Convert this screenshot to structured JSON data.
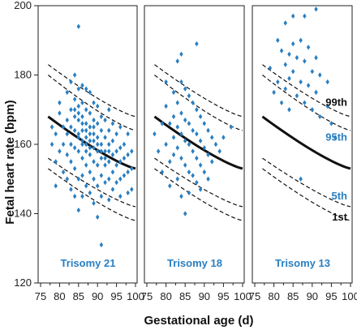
{
  "chart_data": {
    "type": "scatter",
    "ylabel": "Fetal heart rate (bpm)",
    "xlabel": "Gestational age (d)",
    "ylim": [
      120,
      200
    ],
    "yticks": [
      120,
      140,
      160,
      180,
      200
    ],
    "xlim": [
      75,
      100
    ],
    "xticks": [
      75,
      80,
      85,
      90,
      95,
      100
    ],
    "grid": false,
    "marker_color": "#2a7fc1",
    "percentile_labels": [
      {
        "text": "99th",
        "color": "#111111",
        "y": 172
      },
      {
        "text": "95th",
        "color": "#2a7fc1",
        "y": 162
      },
      {
        "text": "5th",
        "color": "#2a7fc1",
        "y": 145
      },
      {
        "text": "1st",
        "color": "#111111",
        "y": 139
      }
    ],
    "reference_curves": [
      {
        "type": "median",
        "style": "solid",
        "x": [
          77,
          100
        ],
        "y": [
          168,
          153
        ]
      },
      {
        "type": "95th",
        "style": "dashed",
        "x": [
          77,
          100
        ],
        "y": [
          180,
          164
        ]
      },
      {
        "type": "99th",
        "style": "dashed",
        "x": [
          77,
          100
        ],
        "y": [
          183,
          168
        ]
      },
      {
        "type": "5th",
        "style": "dashed",
        "x": [
          77,
          100
        ],
        "y": [
          156,
          142
        ]
      },
      {
        "type": "1st",
        "style": "dashed",
        "x": [
          77,
          100
        ],
        "y": [
          153,
          138
        ]
      }
    ],
    "panels": [
      {
        "name": "Trisomy 21",
        "points": [
          [
            78,
            165
          ],
          [
            78,
            160
          ],
          [
            79,
            163
          ],
          [
            79,
            148
          ],
          [
            79,
            155
          ],
          [
            80,
            169
          ],
          [
            80,
            172
          ],
          [
            80,
            158
          ],
          [
            81,
            165
          ],
          [
            81,
            160
          ],
          [
            81,
            152
          ],
          [
            82,
            175
          ],
          [
            82,
            167
          ],
          [
            82,
            163
          ],
          [
            82,
            157
          ],
          [
            82,
            150
          ],
          [
            83,
            178
          ],
          [
            83,
            170
          ],
          [
            83,
            165
          ],
          [
            83,
            160
          ],
          [
            83,
            155
          ],
          [
            83,
            147
          ],
          [
            84,
            180
          ],
          [
            84,
            173
          ],
          [
            84,
            168
          ],
          [
            84,
            164
          ],
          [
            84,
            159
          ],
          [
            84,
            153
          ],
          [
            84,
            145
          ],
          [
            85,
            194
          ],
          [
            85,
            176
          ],
          [
            85,
            171
          ],
          [
            85,
            167
          ],
          [
            85,
            162
          ],
          [
            85,
            158
          ],
          [
            85,
            150
          ],
          [
            85,
            141
          ],
          [
            86,
            177
          ],
          [
            86,
            172
          ],
          [
            86,
            168
          ],
          [
            86,
            164
          ],
          [
            86,
            160
          ],
          [
            86,
            156
          ],
          [
            86,
            151
          ],
          [
            86,
            145
          ],
          [
            87,
            176
          ],
          [
            87,
            170
          ],
          [
            87,
            166
          ],
          [
            87,
            162
          ],
          [
            87,
            158
          ],
          [
            87,
            154
          ],
          [
            87,
            148
          ],
          [
            88,
            175
          ],
          [
            88,
            169
          ],
          [
            88,
            165
          ],
          [
            88,
            161
          ],
          [
            88,
            157
          ],
          [
            88,
            152
          ],
          [
            88,
            146
          ],
          [
            89,
            172
          ],
          [
            89,
            167
          ],
          [
            89,
            163
          ],
          [
            89,
            159
          ],
          [
            89,
            155
          ],
          [
            89,
            150
          ],
          [
            89,
            143
          ],
          [
            90,
            171
          ],
          [
            90,
            166
          ],
          [
            90,
            162
          ],
          [
            90,
            158
          ],
          [
            90,
            154
          ],
          [
            90,
            148
          ],
          [
            90,
            139
          ],
          [
            91,
            168
          ],
          [
            91,
            164
          ],
          [
            91,
            160
          ],
          [
            91,
            156
          ],
          [
            91,
            151
          ],
          [
            91,
            145
          ],
          [
            91,
            131
          ],
          [
            92,
            167
          ],
          [
            92,
            162
          ],
          [
            92,
            158
          ],
          [
            92,
            154
          ],
          [
            92,
            149
          ],
          [
            93,
            170
          ],
          [
            93,
            164
          ],
          [
            93,
            160
          ],
          [
            93,
            155
          ],
          [
            93,
            150
          ],
          [
            93,
            144
          ],
          [
            94,
            166
          ],
          [
            94,
            161
          ],
          [
            94,
            157
          ],
          [
            94,
            152
          ],
          [
            94,
            147
          ],
          [
            95,
            163
          ],
          [
            95,
            158
          ],
          [
            95,
            154
          ],
          [
            95,
            149
          ],
          [
            96,
            165
          ],
          [
            96,
            159
          ],
          [
            96,
            155
          ],
          [
            96,
            150
          ],
          [
            96,
            145
          ],
          [
            97,
            160
          ],
          [
            97,
            156
          ],
          [
            97,
            151
          ],
          [
            98,
            163
          ],
          [
            98,
            157
          ],
          [
            98,
            152
          ],
          [
            98,
            146
          ],
          [
            99,
            158
          ],
          [
            99,
            153
          ],
          [
            99,
            147
          ],
          [
            84,
            170
          ],
          [
            85,
            163
          ],
          [
            86,
            166
          ],
          [
            87,
            160
          ],
          [
            88,
            163
          ],
          [
            89,
            165
          ],
          [
            90,
            160
          ],
          [
            91,
            158
          ],
          [
            92,
            156
          ],
          [
            93,
            158
          ],
          [
            85,
            169
          ],
          [
            86,
            161
          ],
          [
            87,
            164
          ],
          [
            88,
            159
          ],
          [
            89,
            161
          ]
        ]
      },
      {
        "name": "Trisomy 18",
        "points": [
          [
            77,
            163
          ],
          [
            78,
            158
          ],
          [
            79,
            166
          ],
          [
            79,
            152
          ],
          [
            80,
            171
          ],
          [
            80,
            160
          ],
          [
            81,
            155
          ],
          [
            81,
            148
          ],
          [
            82,
            175
          ],
          [
            82,
            168
          ],
          [
            82,
            162
          ],
          [
            82,
            157
          ],
          [
            83,
            184
          ],
          [
            83,
            172
          ],
          [
            83,
            165
          ],
          [
            83,
            159
          ],
          [
            83,
            150
          ],
          [
            84,
            178
          ],
          [
            84,
            169
          ],
          [
            84,
            163
          ],
          [
            84,
            156
          ],
          [
            84,
            145
          ],
          [
            85,
            176
          ],
          [
            85,
            167
          ],
          [
            85,
            161
          ],
          [
            85,
            154
          ],
          [
            85,
            140
          ],
          [
            86,
            174
          ],
          [
            86,
            166
          ],
          [
            86,
            160
          ],
          [
            86,
            152
          ],
          [
            86,
            146
          ],
          [
            87,
            172
          ],
          [
            87,
            164
          ],
          [
            87,
            158
          ],
          [
            87,
            151
          ],
          [
            88,
            189
          ],
          [
            88,
            170
          ],
          [
            88,
            163
          ],
          [
            88,
            156
          ],
          [
            88,
            149
          ],
          [
            89,
            168
          ],
          [
            89,
            161
          ],
          [
            89,
            154
          ],
          [
            89,
            147
          ],
          [
            90,
            166
          ],
          [
            90,
            159
          ],
          [
            90,
            152
          ],
          [
            91,
            164
          ],
          [
            91,
            157
          ],
          [
            91,
            150
          ],
          [
            92,
            162
          ],
          [
            92,
            155
          ],
          [
            93,
            160
          ],
          [
            94,
            158
          ],
          [
            95,
            162
          ],
          [
            97,
            165
          ],
          [
            80,
            178
          ],
          [
            81,
            166
          ],
          [
            84,
            186
          ]
        ]
      },
      {
        "name": "Trisomy 13",
        "points": [
          [
            79,
            182
          ],
          [
            80,
            175
          ],
          [
            81,
            190
          ],
          [
            81,
            178
          ],
          [
            82,
            187
          ],
          [
            82,
            172
          ],
          [
            83,
            195
          ],
          [
            83,
            183
          ],
          [
            83,
            176
          ],
          [
            84,
            186
          ],
          [
            84,
            179
          ],
          [
            84,
            170
          ],
          [
            85,
            197
          ],
          [
            85,
            189
          ],
          [
            85,
            181
          ],
          [
            86,
            185
          ],
          [
            86,
            174
          ],
          [
            87,
            190
          ],
          [
            87,
            178
          ],
          [
            87,
            150
          ],
          [
            88,
            197
          ],
          [
            88,
            184
          ],
          [
            88,
            172
          ],
          [
            89,
            188
          ],
          [
            89,
            177
          ],
          [
            90,
            181
          ],
          [
            90,
            170
          ],
          [
            91,
            199
          ],
          [
            91,
            185
          ],
          [
            91,
            175
          ],
          [
            92,
            180
          ],
          [
            92,
            168
          ],
          [
            94,
            171
          ],
          [
            95,
            166
          ],
          [
            96,
            162
          ],
          [
            94,
            178
          ]
        ]
      }
    ]
  }
}
